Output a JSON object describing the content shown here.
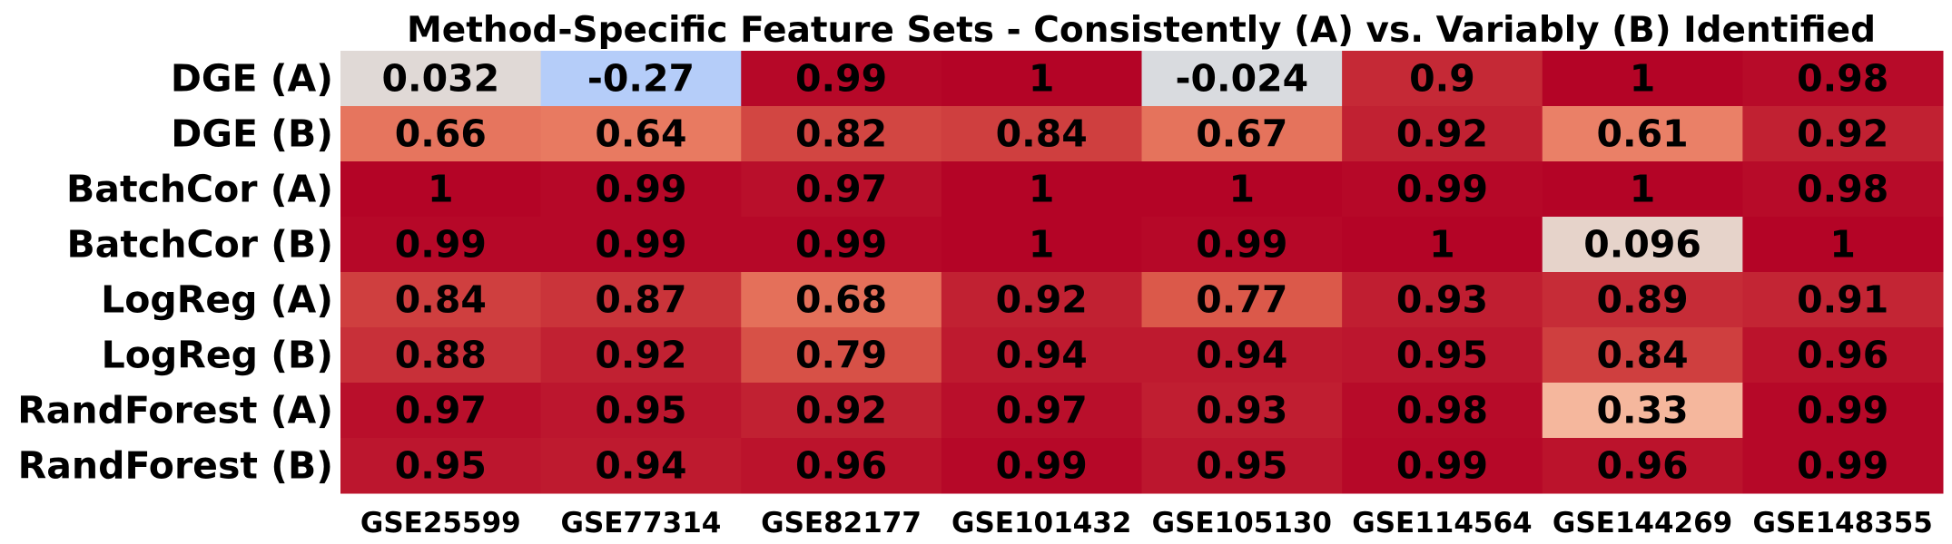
{
  "chart_data": {
    "type": "heatmap",
    "title": "Method-Specific Feature Sets - Consistently (A) vs. Variably (B) Identified",
    "rows": [
      "DGE (A)",
      "DGE (B)",
      "BatchCor (A)",
      "BatchCor (B)",
      "LogReg (A)",
      "LogReg (B)",
      "RandForest (A)",
      "RandForest (B)"
    ],
    "columns": [
      "GSE25599",
      "GSE77314",
      "GSE82177",
      "GSE101432",
      "GSE105130",
      "GSE114564",
      "GSE144269",
      "GSE148355"
    ],
    "values": [
      [
        0.032,
        -0.27,
        0.99,
        1,
        -0.024,
        0.9,
        1,
        0.98
      ],
      [
        0.66,
        0.64,
        0.82,
        0.84,
        0.67,
        0.92,
        0.61,
        0.92
      ],
      [
        1,
        0.99,
        0.97,
        1,
        1,
        0.99,
        1,
        0.98
      ],
      [
        0.99,
        0.99,
        0.99,
        1,
        0.99,
        1,
        0.096,
        1
      ],
      [
        0.84,
        0.87,
        0.68,
        0.92,
        0.77,
        0.93,
        0.89,
        0.91
      ],
      [
        0.88,
        0.92,
        0.79,
        0.94,
        0.94,
        0.95,
        0.84,
        0.96
      ],
      [
        0.97,
        0.95,
        0.92,
        0.97,
        0.93,
        0.98,
        0.33,
        0.99
      ],
      [
        0.95,
        0.94,
        0.96,
        0.99,
        0.95,
        0.99,
        0.96,
        0.99
      ]
    ],
    "cell_labels": [
      [
        "0.032",
        "-0.27",
        "0.99",
        "1",
        "-0.024",
        "0.9",
        "1",
        "0.98"
      ],
      [
        "0.66",
        "0.64",
        "0.82",
        "0.84",
        "0.67",
        "0.92",
        "0.61",
        "0.92"
      ],
      [
        "1",
        "0.99",
        "0.97",
        "1",
        "1",
        "0.99",
        "1",
        "0.98"
      ],
      [
        "0.99",
        "0.99",
        "0.99",
        "1",
        "0.99",
        "1",
        "0.096",
        "1"
      ],
      [
        "0.84",
        "0.87",
        "0.68",
        "0.92",
        "0.77",
        "0.93",
        "0.89",
        "0.91"
      ],
      [
        "0.88",
        "0.92",
        "0.79",
        "0.94",
        "0.94",
        "0.95",
        "0.84",
        "0.96"
      ],
      [
        "0.97",
        "0.95",
        "0.92",
        "0.97",
        "0.93",
        "0.98",
        "0.33",
        "0.99"
      ],
      [
        "0.95",
        "0.94",
        "0.96",
        "0.99",
        "0.95",
        "0.99",
        "0.96",
        "0.99"
      ]
    ],
    "colormap": "coolwarm",
    "value_range": [
      -1,
      1
    ],
    "colorbar": false,
    "grid": false
  }
}
